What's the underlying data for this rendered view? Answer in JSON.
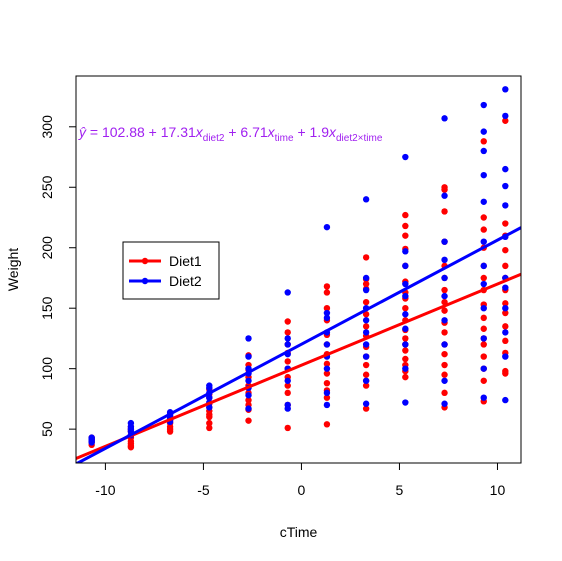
{
  "chart_data": {
    "type": "scatter",
    "title": "",
    "xlabel": "cTime",
    "ylabel": "Weight",
    "xlim": [
      -11.5,
      11.2
    ],
    "ylim": [
      22,
      342
    ],
    "x_ticks": [
      -10,
      -5,
      0,
      5,
      10
    ],
    "y_ticks": [
      50,
      100,
      150,
      200,
      250,
      300
    ],
    "grid": false,
    "legend_position": "left-middle",
    "colors": {
      "Diet1": "#ff0000",
      "Diet2": "#0000ff",
      "equation": "#a020f0"
    },
    "equation": {
      "lhs": "ŷ",
      "parts": [
        {
          "text": " = 102.88 + 17.31",
          "sub": false
        },
        {
          "text": "x",
          "sub": false
        },
        {
          "text": "diet2",
          "sub": true
        },
        {
          "text": " + 6.71",
          "sub": false
        },
        {
          "text": "x",
          "sub": false
        },
        {
          "text": "time",
          "sub": true
        },
        {
          "text": " + 1.9",
          "sub": false
        },
        {
          "text": "x",
          "sub": false
        },
        {
          "text": "diet2×time",
          "sub": true
        }
      ]
    },
    "series": [
      {
        "name": "Diet1",
        "color": "#ff0000",
        "line": {
          "intercept": 102.88,
          "slope": 6.71
        },
        "points": [
          [
            -10.7,
            42
          ],
          [
            -10.7,
            40
          ],
          [
            -10.7,
            39
          ],
          [
            -10.7,
            41
          ],
          [
            -10.7,
            43
          ],
          [
            -10.7,
            37
          ],
          [
            -8.7,
            50
          ],
          [
            -8.7,
            48
          ],
          [
            -8.7,
            45
          ],
          [
            -8.7,
            43
          ],
          [
            -8.7,
            40
          ],
          [
            -8.7,
            38
          ],
          [
            -8.7,
            36
          ],
          [
            -8.7,
            35
          ],
          [
            -8.7,
            52
          ],
          [
            -6.7,
            48
          ],
          [
            -6.7,
            55
          ],
          [
            -6.7,
            58
          ],
          [
            -6.7,
            61
          ],
          [
            -6.7,
            63
          ],
          [
            -6.7,
            52
          ],
          [
            -6.7,
            50
          ],
          [
            -6.7,
            57
          ],
          [
            -4.7,
            51
          ],
          [
            -4.7,
            55
          ],
          [
            -4.7,
            62
          ],
          [
            -4.7,
            65
          ],
          [
            -4.7,
            71
          ],
          [
            -4.7,
            76
          ],
          [
            -4.7,
            79
          ],
          [
            -4.7,
            83
          ],
          [
            -4.7,
            68
          ],
          [
            -4.7,
            60
          ],
          [
            -2.7,
            57
          ],
          [
            -2.7,
            66
          ],
          [
            -2.7,
            74
          ],
          [
            -2.7,
            80
          ],
          [
            -2.7,
            86
          ],
          [
            -2.7,
            93
          ],
          [
            -2.7,
            99
          ],
          [
            -2.7,
            103
          ],
          [
            -2.7,
            111
          ],
          [
            -2.7,
            70
          ],
          [
            -0.7,
            51
          ],
          [
            -0.7,
            70
          ],
          [
            -0.7,
            80
          ],
          [
            -0.7,
            86
          ],
          [
            -0.7,
            93
          ],
          [
            -0.7,
            100
          ],
          [
            -0.7,
            106
          ],
          [
            -0.7,
            113
          ],
          [
            -0.7,
            120
          ],
          [
            -0.7,
            130
          ],
          [
            -0.7,
            139
          ],
          [
            1.3,
            54
          ],
          [
            1.3,
            76
          ],
          [
            1.3,
            82
          ],
          [
            1.3,
            88
          ],
          [
            1.3,
            96
          ],
          [
            1.3,
            104
          ],
          [
            1.3,
            112
          ],
          [
            1.3,
            120
          ],
          [
            1.3,
            128
          ],
          [
            1.3,
            140
          ],
          [
            1.3,
            150
          ],
          [
            1.3,
            163
          ],
          [
            1.3,
            168
          ],
          [
            3.3,
            67
          ],
          [
            3.3,
            86
          ],
          [
            3.3,
            90
          ],
          [
            3.3,
            95
          ],
          [
            3.3,
            103
          ],
          [
            3.3,
            110
          ],
          [
            3.3,
            118
          ],
          [
            3.3,
            127
          ],
          [
            3.3,
            135
          ],
          [
            3.3,
            145
          ],
          [
            3.3,
            155
          ],
          [
            3.3,
            166
          ],
          [
            3.3,
            170
          ],
          [
            3.3,
            174
          ],
          [
            3.3,
            192
          ],
          [
            5.3,
            93
          ],
          [
            5.3,
            98
          ],
          [
            5.3,
            103
          ],
          [
            5.3,
            108
          ],
          [
            5.3,
            115
          ],
          [
            5.3,
            120
          ],
          [
            5.3,
            125
          ],
          [
            5.3,
            132
          ],
          [
            5.3,
            140
          ],
          [
            5.3,
            150
          ],
          [
            5.3,
            158
          ],
          [
            5.3,
            163
          ],
          [
            5.3,
            172
          ],
          [
            5.3,
            185
          ],
          [
            5.3,
            199
          ],
          [
            5.3,
            210
          ],
          [
            5.3,
            218
          ],
          [
            5.3,
            227
          ],
          [
            7.3,
            68
          ],
          [
            7.3,
            80
          ],
          [
            7.3,
            95
          ],
          [
            7.3,
            103
          ],
          [
            7.3,
            112
          ],
          [
            7.3,
            120
          ],
          [
            7.3,
            130
          ],
          [
            7.3,
            138
          ],
          [
            7.3,
            148
          ],
          [
            7.3,
            155
          ],
          [
            7.3,
            165
          ],
          [
            7.3,
            175
          ],
          [
            7.3,
            185
          ],
          [
            7.3,
            205
          ],
          [
            7.3,
            230
          ],
          [
            7.3,
            250
          ],
          [
            7.3,
            248
          ],
          [
            9.3,
            73
          ],
          [
            9.3,
            90
          ],
          [
            9.3,
            100
          ],
          [
            9.3,
            110
          ],
          [
            9.3,
            120
          ],
          [
            9.3,
            125
          ],
          [
            9.3,
            133
          ],
          [
            9.3,
            142
          ],
          [
            9.3,
            153
          ],
          [
            9.3,
            165
          ],
          [
            9.3,
            175
          ],
          [
            9.3,
            185
          ],
          [
            9.3,
            200
          ],
          [
            9.3,
            215
          ],
          [
            9.3,
            225
          ],
          [
            9.3,
            288
          ],
          [
            10.4,
            96
          ],
          [
            10.4,
            98
          ],
          [
            10.4,
            113
          ],
          [
            10.4,
            123
          ],
          [
            10.4,
            135
          ],
          [
            10.4,
            146
          ],
          [
            10.4,
            154
          ],
          [
            10.4,
            165
          ],
          [
            10.4,
            175
          ],
          [
            10.4,
            185
          ],
          [
            10.4,
            198
          ],
          [
            10.4,
            210
          ],
          [
            10.4,
            220
          ],
          [
            10.4,
            305
          ]
        ]
      },
      {
        "name": "Diet2",
        "color": "#0000ff",
        "line": {
          "intercept": 120.19,
          "slope": 8.61
        },
        "points": [
          [
            -10.7,
            43
          ],
          [
            -10.7,
            41
          ],
          [
            -10.7,
            40
          ],
          [
            -10.7,
            42
          ],
          [
            -10.7,
            39
          ],
          [
            -8.7,
            55
          ],
          [
            -8.7,
            50
          ],
          [
            -8.7,
            48
          ],
          [
            -8.7,
            45
          ],
          [
            -8.7,
            52
          ],
          [
            -6.7,
            64
          ],
          [
            -6.7,
            62
          ],
          [
            -6.7,
            58
          ],
          [
            -6.7,
            60
          ],
          [
            -6.7,
            56
          ],
          [
            -4.7,
            86
          ],
          [
            -4.7,
            84
          ],
          [
            -4.7,
            80
          ],
          [
            -4.7,
            76
          ],
          [
            -4.7,
            72
          ],
          [
            -4.7,
            68
          ],
          [
            -2.7,
            125
          ],
          [
            -2.7,
            110
          ],
          [
            -2.7,
            100
          ],
          [
            -2.7,
            96
          ],
          [
            -2.7,
            90
          ],
          [
            -2.7,
            84
          ],
          [
            -2.7,
            67
          ],
          [
            -2.7,
            78
          ],
          [
            -0.7,
            163
          ],
          [
            -0.7,
            125
          ],
          [
            -0.7,
            120
          ],
          [
            -0.7,
            112
          ],
          [
            -0.7,
            100
          ],
          [
            -0.7,
            90
          ],
          [
            -0.7,
            70
          ],
          [
            -0.7,
            67
          ],
          [
            1.3,
            217
          ],
          [
            1.3,
            146
          ],
          [
            1.3,
            142
          ],
          [
            1.3,
            130
          ],
          [
            1.3,
            120
          ],
          [
            1.3,
            110
          ],
          [
            1.3,
            100
          ],
          [
            1.3,
            80
          ],
          [
            1.3,
            70
          ],
          [
            3.3,
            240
          ],
          [
            3.3,
            175
          ],
          [
            3.3,
            165
          ],
          [
            3.3,
            150
          ],
          [
            3.3,
            140
          ],
          [
            3.3,
            130
          ],
          [
            3.3,
            120
          ],
          [
            3.3,
            110
          ],
          [
            3.3,
            90
          ],
          [
            3.3,
            71
          ],
          [
            5.3,
            275
          ],
          [
            5.3,
            197
          ],
          [
            5.3,
            185
          ],
          [
            5.3,
            170
          ],
          [
            5.3,
            160
          ],
          [
            5.3,
            145
          ],
          [
            5.3,
            133
          ],
          [
            5.3,
            120
          ],
          [
            5.3,
            100
          ],
          [
            5.3,
            72
          ],
          [
            7.3,
            307
          ],
          [
            7.3,
            243
          ],
          [
            7.3,
            205
          ],
          [
            7.3,
            190
          ],
          [
            7.3,
            175
          ],
          [
            7.3,
            160
          ],
          [
            7.3,
            140
          ],
          [
            7.3,
            120
          ],
          [
            7.3,
            90
          ],
          [
            7.3,
            71
          ],
          [
            9.3,
            318
          ],
          [
            9.3,
            296
          ],
          [
            9.3,
            280
          ],
          [
            9.3,
            260
          ],
          [
            9.3,
            238
          ],
          [
            9.3,
            205
          ],
          [
            9.3,
            185
          ],
          [
            9.3,
            170
          ],
          [
            9.3,
            150
          ],
          [
            9.3,
            125
          ],
          [
            9.3,
            100
          ],
          [
            9.3,
            76
          ],
          [
            10.4,
            331
          ],
          [
            10.4,
            309
          ],
          [
            10.4,
            265
          ],
          [
            10.4,
            251
          ],
          [
            10.4,
            235
          ],
          [
            10.4,
            209
          ],
          [
            10.4,
            175
          ],
          [
            10.4,
            167
          ],
          [
            10.4,
            150
          ],
          [
            10.4,
            130
          ],
          [
            10.4,
            110
          ],
          [
            10.4,
            74
          ]
        ]
      }
    ]
  }
}
